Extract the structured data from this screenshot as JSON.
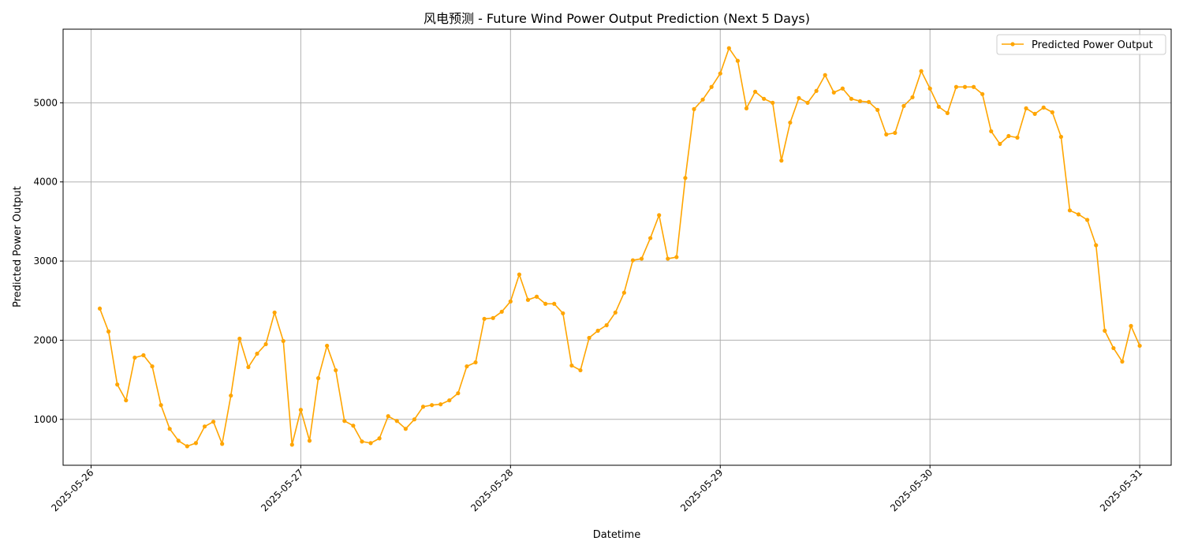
{
  "chart_data": {
    "type": "line",
    "title": "风电预测 - Future Wind Power Output Prediction (Next 5 Days)",
    "xlabel": "Datetime",
    "ylabel": "Predicted Power Output",
    "grid": true,
    "legend_position": "top-right",
    "x_ticks": [
      "2025-05-26",
      "2025-05-27",
      "2025-05-28",
      "2025-05-29",
      "2025-05-30",
      "2025-05-31"
    ],
    "x_range": [
      "2025-05-25 20:48",
      "2025-05-31 03:36"
    ],
    "y_ticks": [
      1000,
      2000,
      3000,
      4000,
      5000
    ],
    "ylim": [
      420,
      5930
    ],
    "series": [
      {
        "name": "Predicted Power Output",
        "color": "#ffa500",
        "marker": "circle",
        "x": [
          "2025-05-26 01:00",
          "2025-05-26 02:00",
          "2025-05-26 03:00",
          "2025-05-26 04:00",
          "2025-05-26 05:00",
          "2025-05-26 06:00",
          "2025-05-26 07:00",
          "2025-05-26 08:00",
          "2025-05-26 09:00",
          "2025-05-26 10:00",
          "2025-05-26 11:00",
          "2025-05-26 12:00",
          "2025-05-26 13:00",
          "2025-05-26 14:00",
          "2025-05-26 15:00",
          "2025-05-26 16:00",
          "2025-05-26 17:00",
          "2025-05-26 18:00",
          "2025-05-26 19:00",
          "2025-05-26 20:00",
          "2025-05-26 21:00",
          "2025-05-26 22:00",
          "2025-05-26 23:00",
          "2025-05-27 00:00",
          "2025-05-27 01:00",
          "2025-05-27 02:00",
          "2025-05-27 03:00",
          "2025-05-27 04:00",
          "2025-05-27 05:00",
          "2025-05-27 06:00",
          "2025-05-27 07:00",
          "2025-05-27 08:00",
          "2025-05-27 09:00",
          "2025-05-27 10:00",
          "2025-05-27 11:00",
          "2025-05-27 12:00",
          "2025-05-27 13:00",
          "2025-05-27 14:00",
          "2025-05-27 15:00",
          "2025-05-27 16:00",
          "2025-05-27 17:00",
          "2025-05-27 18:00",
          "2025-05-27 19:00",
          "2025-05-27 20:00",
          "2025-05-27 21:00",
          "2025-05-27 22:00",
          "2025-05-27 23:00",
          "2025-05-28 00:00",
          "2025-05-28 01:00",
          "2025-05-28 02:00",
          "2025-05-28 03:00",
          "2025-05-28 04:00",
          "2025-05-28 05:00",
          "2025-05-28 06:00",
          "2025-05-28 07:00",
          "2025-05-28 08:00",
          "2025-05-28 09:00",
          "2025-05-28 10:00",
          "2025-05-28 11:00",
          "2025-05-28 12:00",
          "2025-05-28 13:00",
          "2025-05-28 14:00",
          "2025-05-28 15:00",
          "2025-05-28 16:00",
          "2025-05-28 17:00",
          "2025-05-28 18:00",
          "2025-05-28 19:00",
          "2025-05-28 20:00",
          "2025-05-28 21:00",
          "2025-05-28 22:00",
          "2025-05-28 23:00",
          "2025-05-29 00:00",
          "2025-05-29 01:00",
          "2025-05-29 02:00",
          "2025-05-29 03:00",
          "2025-05-29 04:00",
          "2025-05-29 05:00",
          "2025-05-29 06:00",
          "2025-05-29 07:00",
          "2025-05-29 08:00",
          "2025-05-29 09:00",
          "2025-05-29 10:00",
          "2025-05-29 11:00",
          "2025-05-29 12:00",
          "2025-05-29 13:00",
          "2025-05-29 14:00",
          "2025-05-29 15:00",
          "2025-05-29 16:00",
          "2025-05-29 17:00",
          "2025-05-29 18:00",
          "2025-05-29 19:00",
          "2025-05-29 20:00",
          "2025-05-29 21:00",
          "2025-05-29 22:00",
          "2025-05-29 23:00",
          "2025-05-30 00:00",
          "2025-05-30 01:00",
          "2025-05-30 02:00",
          "2025-05-30 03:00",
          "2025-05-30 04:00",
          "2025-05-30 05:00",
          "2025-05-30 06:00",
          "2025-05-30 07:00",
          "2025-05-30 08:00",
          "2025-05-30 09:00",
          "2025-05-30 10:00",
          "2025-05-30 11:00",
          "2025-05-30 12:00",
          "2025-05-30 13:00",
          "2025-05-30 14:00",
          "2025-05-30 15:00",
          "2025-05-30 16:00",
          "2025-05-30 17:00",
          "2025-05-30 18:00",
          "2025-05-30 19:00",
          "2025-05-30 20:00",
          "2025-05-30 21:00",
          "2025-05-30 22:00",
          "2025-05-30 23:00",
          "2025-05-31 00:00"
        ],
        "values": [
          2400,
          2110,
          1440,
          1240,
          1780,
          1810,
          1670,
          1180,
          880,
          730,
          660,
          700,
          910,
          970,
          690,
          1300,
          2020,
          1660,
          1830,
          1950,
          2350,
          1990,
          680,
          1120,
          730,
          1520,
          1930,
          1620,
          980,
          920,
          720,
          700,
          760,
          1040,
          980,
          880,
          1000,
          1160,
          1180,
          1190,
          1240,
          1330,
          1670,
          1720,
          2270,
          2280,
          2360,
          2490,
          2830,
          2510,
          2550,
          2460,
          2460,
          2340,
          1680,
          1620,
          2030,
          2120,
          2190,
          2350,
          2600,
          3010,
          3030,
          3290,
          3580,
          3030,
          3050,
          4050,
          4920,
          5040,
          5200,
          5370,
          5690,
          5530,
          4930,
          5140,
          5050,
          5000,
          4270,
          4750,
          5060,
          5000,
          5150,
          5350,
          5130,
          5180,
          5050,
          5020,
          5010,
          4910,
          4600,
          4620,
          4960,
          5070,
          5400,
          5180,
          4950,
          4870,
          5200,
          5200,
          5200,
          5110,
          4640,
          4480,
          4580,
          4560,
          4930,
          4860,
          4940,
          4880,
          4570,
          3640,
          3590,
          3520,
          3200,
          2120,
          1900,
          1730,
          2180,
          1930
        ]
      }
    ]
  }
}
